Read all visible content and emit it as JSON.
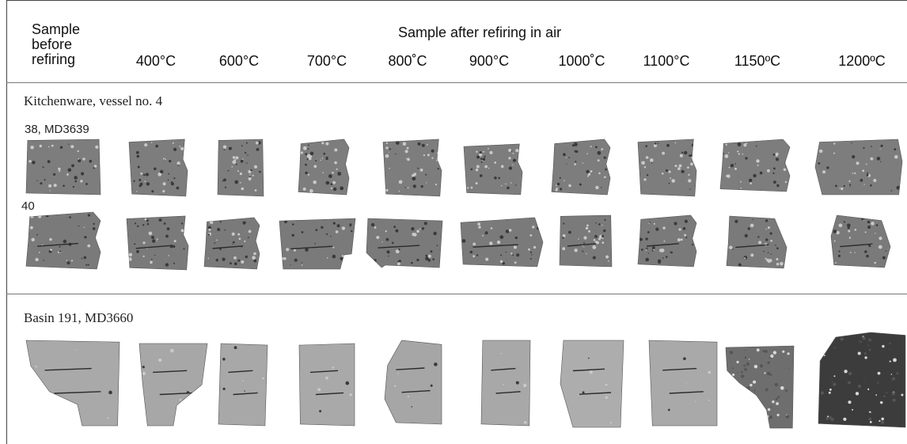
{
  "header": {
    "before_label_1": "Sample",
    "before_label_2": "before",
    "before_label_3": "refiring",
    "after_label": "Sample after refiring in air",
    "temperatures": [
      "400°C",
      "600°C",
      "700°C",
      "800˚C",
      "900°C",
      "1000˚C",
      "1100°C",
      "1150ºC",
      "1200ºC"
    ]
  },
  "groups": [
    {
      "label": "Kitchenware, vessel no. 4",
      "rows": [
        {
          "label": "38, MD3639",
          "color": "#7d7d7d"
        },
        {
          "label": "40",
          "color": "#7a7a7a"
        }
      ]
    },
    {
      "label": "Basin 191, MD3660",
      "rows": [
        {
          "label": "",
          "colors": [
            "#a9a9a9",
            "#a7a7a7",
            "#a8a8a8",
            "#a9a9a9",
            "#a6a6a6",
            "#a8a8a8",
            "#adadad",
            "#a9a9a9",
            "#6e6e6e",
            "#3c3c3c"
          ]
        }
      ]
    }
  ]
}
